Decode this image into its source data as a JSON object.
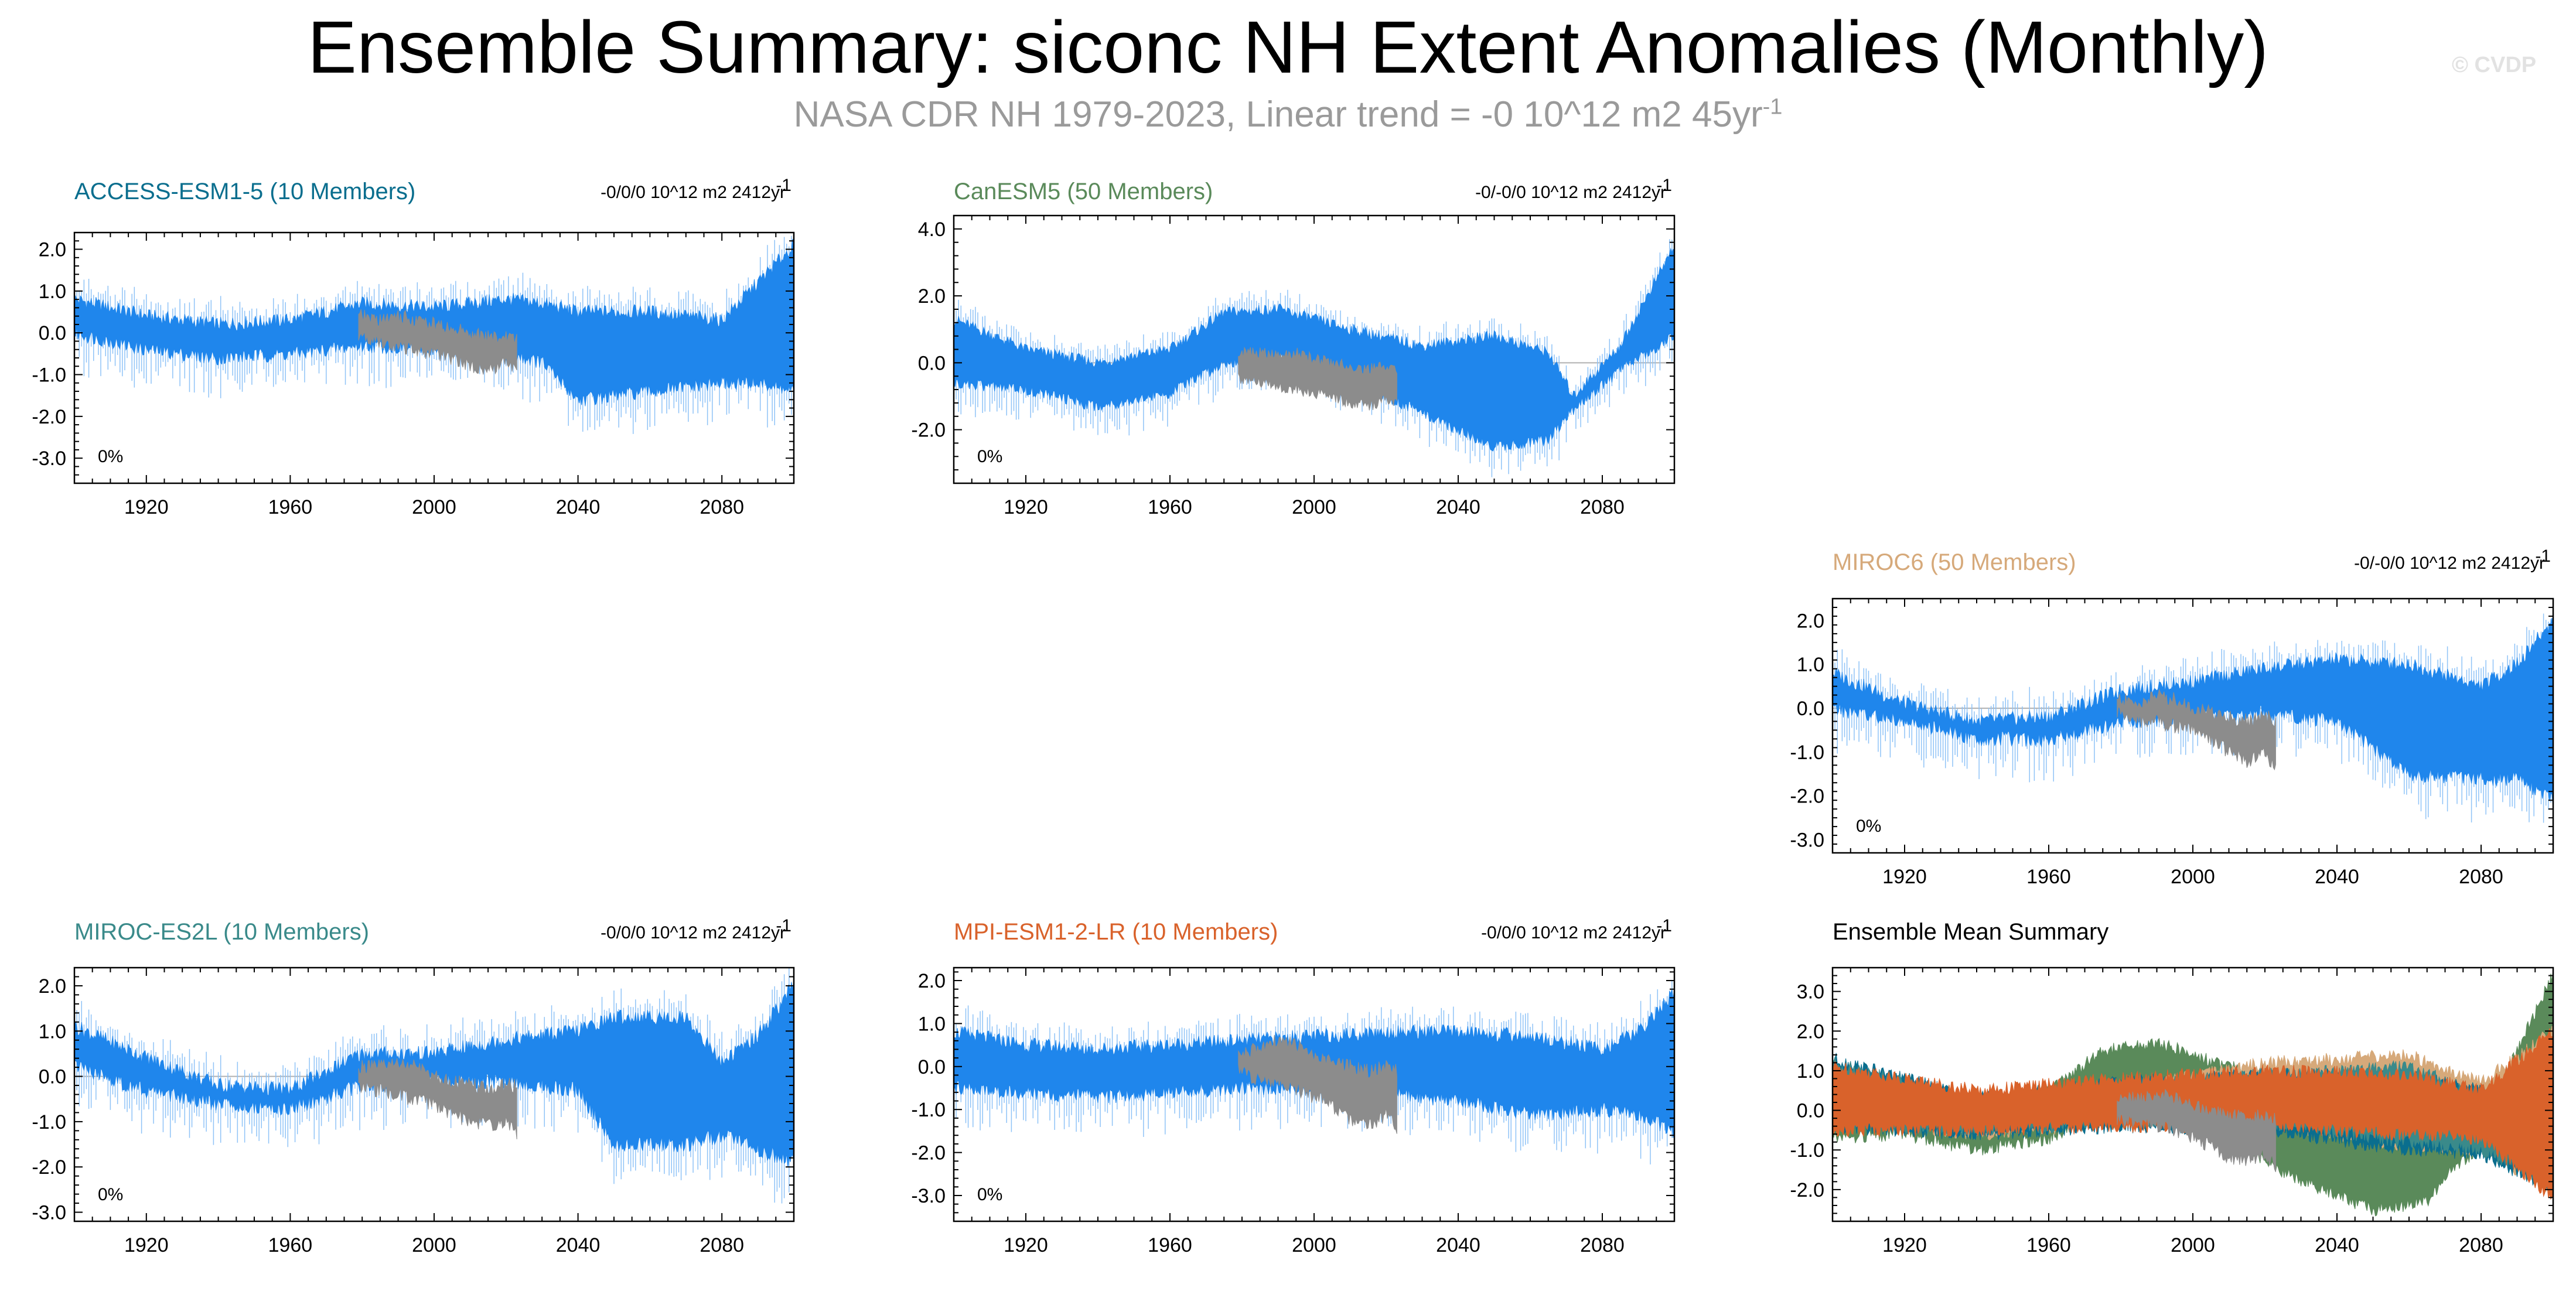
{
  "title": "Ensemble Summary: siconc NH Extent Anomalies (Monthly)",
  "subtitle": "NASA CDR NH 1979-2023, Linear trend = -0 10^12 m2 45yr",
  "subtitle_exp": "-1",
  "credit": "© CVDP",
  "colors": {
    "ensemble": "#1f86ec",
    "ensemble_light": "#8fc3f7",
    "obs": "#8c8c8c"
  },
  "chart_data": [
    {
      "id": "access",
      "type": "area",
      "title": "ACCESS-ESM1-5 (10 Members)",
      "title_color": "#0a6e8e",
      "trend_text": "-0/0/0 10^12 m2 2412yr",
      "trend_exp": "-1",
      "percent_label": "0%",
      "xlim": [
        1900,
        2100
      ],
      "ylim": [
        -3.6,
        2.4
      ],
      "xticks": [
        1920,
        1960,
        2000,
        2040,
        2080
      ],
      "yticks": [
        -3.0,
        -2.0,
        -1.0,
        0.0,
        1.0,
        2.0
      ],
      "ytick_labels": [
        "-3.0",
        "-2.0",
        "-1.0",
        "0.0",
        "1.0",
        "2.0"
      ],
      "ensemble": {
        "x": [
          1900,
          1920,
          1940,
          1960,
          1980,
          2000,
          2020,
          2030,
          2040,
          2060,
          2080,
          2090,
          2100
        ],
        "upper": [
          0.8,
          0.4,
          0.2,
          0.3,
          0.7,
          0.6,
          0.8,
          0.7,
          0.5,
          0.5,
          0.3,
          1.2,
          2.1
        ],
        "lower": [
          0.0,
          -0.4,
          -0.6,
          -0.5,
          -0.3,
          -0.4,
          -0.5,
          -0.7,
          -1.6,
          -1.4,
          -1.2,
          -1.2,
          -1.4
        ]
      },
      "obs": {
        "x": [
          1979,
          1985,
          1990,
          1995,
          2000,
          2005,
          2010,
          2015,
          2020,
          2023
        ],
        "upper": [
          0.4,
          0.3,
          0.4,
          0.3,
          0.2,
          0.1,
          0.0,
          -0.1,
          -0.1,
          -0.2
        ],
        "lower": [
          -0.1,
          -0.2,
          -0.3,
          -0.4,
          -0.5,
          -0.6,
          -0.8,
          -0.9,
          -0.7,
          -0.8
        ]
      }
    },
    {
      "id": "canesm",
      "type": "area",
      "title": "CanESM5 (50 Members)",
      "title_color": "#5a8a5a",
      "trend_text": "-0/-0/0 10^12 m2 2412yr",
      "trend_exp": "-1",
      "percent_label": "0%",
      "xlim": [
        1900,
        2100
      ],
      "ylim": [
        -3.6,
        4.4
      ],
      "xticks": [
        1920,
        1960,
        2000,
        2040,
        2080
      ],
      "yticks": [
        -2.0,
        0.0,
        2.0,
        4.0
      ],
      "ytick_labels": [
        "-2.0",
        "0.0",
        "2.0",
        "4.0"
      ],
      "ensemble": {
        "x": [
          1900,
          1920,
          1940,
          1960,
          1975,
          1990,
          2010,
          2030,
          2050,
          2065,
          2072,
          2085,
          2100
        ],
        "upper": [
          1.3,
          0.4,
          0.0,
          0.4,
          1.5,
          1.6,
          1.0,
          0.5,
          0.8,
          0.3,
          -1.0,
          0.5,
          3.5
        ],
        "lower": [
          -0.6,
          -0.8,
          -1.3,
          -0.9,
          0.0,
          0.2,
          -0.5,
          -1.5,
          -2.5,
          -2.3,
          -1.4,
          -0.2,
          0.8
        ]
      },
      "obs": {
        "x": [
          1979,
          1985,
          1990,
          1995,
          2000,
          2005,
          2010,
          2015,
          2020,
          2023
        ],
        "upper": [
          0.3,
          0.3,
          0.2,
          0.3,
          0.1,
          0.0,
          -0.1,
          -0.2,
          -0.1,
          -0.2
        ],
        "lower": [
          -0.5,
          -0.6,
          -0.7,
          -0.8,
          -0.9,
          -1.0,
          -1.2,
          -1.3,
          -1.1,
          -1.2
        ]
      }
    },
    {
      "id": "miroc6",
      "type": "area",
      "title": "MIROC6 (50 Members)",
      "title_color": "#d6a97a",
      "trend_text": "-0/-0/0 10^12 m2 2412yr",
      "trend_exp": "-1",
      "percent_label": "0%",
      "xlim": [
        1900,
        2100
      ],
      "ylim": [
        -3.3,
        2.5
      ],
      "xticks": [
        1920,
        1960,
        2000,
        2040,
        2080
      ],
      "yticks": [
        -3.0,
        -2.0,
        -1.0,
        0.0,
        1.0,
        2.0
      ],
      "ytick_labels": [
        "-3.0",
        "-2.0",
        "-1.0",
        "0.0",
        "1.0",
        "2.0"
      ],
      "ensemble": {
        "x": [
          1900,
          1920,
          1940,
          1960,
          1980,
          2000,
          2020,
          2040,
          2060,
          2080,
          2090,
          2100
        ],
        "upper": [
          0.8,
          0.1,
          -0.3,
          -0.2,
          0.4,
          0.6,
          0.9,
          1.1,
          1.0,
          0.5,
          1.0,
          2.0
        ],
        "lower": [
          0.0,
          -0.3,
          -0.7,
          -0.7,
          -0.3,
          -0.2,
          -0.1,
          -0.3,
          -1.5,
          -1.6,
          -1.6,
          -2.1
        ]
      },
      "obs": {
        "x": [
          1979,
          1985,
          1990,
          1995,
          2000,
          2005,
          2010,
          2015,
          2020,
          2023
        ],
        "upper": [
          0.2,
          0.1,
          0.3,
          0.2,
          0.0,
          -0.1,
          -0.2,
          -0.3,
          -0.2,
          -0.3
        ],
        "lower": [
          -0.1,
          -0.3,
          -0.3,
          -0.4,
          -0.5,
          -0.7,
          -1.0,
          -1.2,
          -1.0,
          -1.4
        ]
      }
    },
    {
      "id": "miroc-es2l",
      "type": "area",
      "title": "MIROC-ES2L (10 Members)",
      "title_color": "#3a8a8a",
      "trend_text": "-0/0/0 10^12 m2 2412yr",
      "trend_exp": "-1",
      "percent_label": "0%",
      "xlim": [
        1900,
        2100
      ],
      "ylim": [
        -3.2,
        2.4
      ],
      "xticks": [
        1920,
        1960,
        2000,
        2040,
        2080
      ],
      "yticks": [
        -3.0,
        -2.0,
        -1.0,
        0.0,
        1.0,
        2.0
      ],
      "ytick_labels": [
        "-3.0",
        "-2.0",
        "-1.0",
        "0.0",
        "1.0",
        "2.0"
      ],
      "ensemble": {
        "x": [
          1900,
          1920,
          1940,
          1960,
          1980,
          2000,
          2020,
          2040,
          2050,
          2070,
          2080,
          2090,
          2100
        ],
        "upper": [
          1.1,
          0.4,
          -0.2,
          -0.3,
          0.5,
          0.5,
          0.8,
          1.0,
          1.3,
          1.3,
          0.3,
          0.9,
          2.0
        ],
        "lower": [
          0.2,
          -0.3,
          -0.6,
          -0.7,
          -0.2,
          -0.1,
          -0.1,
          -0.3,
          -1.5,
          -1.5,
          -1.3,
          -1.6,
          -1.9
        ]
      },
      "obs": {
        "x": [
          1979,
          1985,
          1990,
          1995,
          2000,
          2005,
          2010,
          2015,
          2020,
          2023
        ],
        "upper": [
          0.2,
          0.2,
          0.3,
          0.2,
          0.0,
          -0.1,
          -0.2,
          -0.3,
          -0.2,
          -0.2
        ],
        "lower": [
          -0.2,
          -0.3,
          -0.4,
          -0.5,
          -0.6,
          -0.8,
          -1.0,
          -1.1,
          -1.0,
          -1.3
        ]
      }
    },
    {
      "id": "mpi",
      "type": "area",
      "title": "MPI-ESM1-2-LR (10 Members)",
      "title_color": "#d9622b",
      "trend_text": "-0/0/0 10^12 m2 2412yr",
      "trend_exp": "-1",
      "percent_label": "0%",
      "xlim": [
        1900,
        2100
      ],
      "ylim": [
        -3.6,
        2.3
      ],
      "xticks": [
        1920,
        1960,
        2000,
        2040,
        2080
      ],
      "yticks": [
        -3.0,
        -2.0,
        -1.0,
        0.0,
        1.0,
        2.0
      ],
      "ytick_labels": [
        "-3.0",
        "-2.0",
        "-1.0",
        "0.0",
        "1.0",
        "2.0"
      ],
      "ensemble": {
        "x": [
          1900,
          1920,
          1940,
          1960,
          1980,
          2000,
          2020,
          2040,
          2060,
          2080,
          2090,
          2100
        ],
        "upper": [
          0.8,
          0.5,
          0.4,
          0.5,
          0.6,
          0.7,
          0.8,
          0.8,
          0.7,
          0.4,
          0.8,
          1.7
        ],
        "lower": [
          -0.5,
          -0.6,
          -0.7,
          -0.6,
          -0.5,
          -0.5,
          -0.6,
          -0.8,
          -1.1,
          -1.0,
          -1.1,
          -1.5
        ]
      },
      "obs": {
        "x": [
          1979,
          1985,
          1990,
          1995,
          2000,
          2005,
          2010,
          2015,
          2020,
          2023
        ],
        "upper": [
          0.3,
          0.4,
          0.6,
          0.5,
          0.2,
          0.1,
          0.0,
          -0.1,
          0.0,
          -0.1
        ],
        "lower": [
          -0.1,
          -0.3,
          -0.4,
          -0.5,
          -0.7,
          -0.9,
          -1.2,
          -1.4,
          -1.1,
          -1.5
        ]
      }
    },
    {
      "id": "ensemble-mean",
      "type": "area",
      "title": "Ensemble Mean Summary",
      "title_color": "#000000",
      "trend_text": "",
      "trend_exp": "",
      "percent_label": "",
      "xlim": [
        1900,
        2100
      ],
      "ylim": [
        -2.8,
        3.6
      ],
      "xticks": [
        1920,
        1960,
        2000,
        2040,
        2080
      ],
      "yticks": [
        -2.0,
        -1.0,
        0.0,
        1.0,
        2.0,
        3.0
      ],
      "ytick_labels": [
        "-2.0",
        "-1.0",
        "0.0",
        "1.0",
        "2.0",
        "3.0"
      ],
      "series": [
        {
          "name": "CanESM5",
          "color": "#5a8a5a",
          "x": [
            1900,
            1920,
            1940,
            1960,
            1975,
            1990,
            2010,
            2030,
            2050,
            2065,
            2072,
            2085,
            2100
          ],
          "upper": [
            1.0,
            0.3,
            0.0,
            0.5,
            1.5,
            1.7,
            1.1,
            0.6,
            0.7,
            0.4,
            -0.6,
            0.6,
            3.4
          ],
          "lower": [
            -0.7,
            -0.6,
            -1.0,
            -0.7,
            -0.1,
            0.1,
            -0.7,
            -1.8,
            -2.5,
            -2.3,
            -1.5,
            -0.5,
            1.5
          ]
        },
        {
          "name": "MIROC6",
          "color": "#d6a97a",
          "x": [
            1900,
            1940,
            1980,
            2020,
            2060,
            2080,
            2100
          ],
          "upper": [
            1.0,
            -0.1,
            0.5,
            1.2,
            1.4,
            0.7,
            2.0
          ],
          "lower": [
            -0.2,
            -0.6,
            -0.3,
            -0.3,
            -0.9,
            -1.0,
            -2.0
          ]
        },
        {
          "name": "ACCESS-ESM1-5",
          "color": "#0a6e8e",
          "x": [
            1900,
            1940,
            1980,
            2020,
            2060,
            2080,
            2100
          ],
          "upper": [
            1.3,
            0.3,
            0.7,
            0.9,
            0.9,
            0.5,
            0.3
          ],
          "lower": [
            -0.4,
            -0.6,
            -0.4,
            -0.5,
            -1.0,
            -1.1,
            -2.0
          ]
        },
        {
          "name": "MIROC-ES2L",
          "color": "#3a8a8a",
          "x": [
            1900,
            1940,
            1980,
            2020,
            2060,
            2080,
            2100
          ],
          "upper": [
            1.2,
            0.2,
            0.6,
            0.9,
            1.1,
            0.4,
            0.5
          ],
          "lower": [
            -0.3,
            -0.5,
            -0.3,
            -0.3,
            -0.8,
            -1.0,
            -1.8
          ]
        },
        {
          "name": "MPI-ESM1-2-LR",
          "color": "#d9622b",
          "x": [
            1900,
            1940,
            1980,
            2020,
            2060,
            2080,
            2100
          ],
          "upper": [
            1.1,
            0.5,
            0.8,
            1.0,
            0.9,
            0.5,
            2.0
          ],
          "lower": [
            -0.5,
            -0.5,
            -0.4,
            -0.4,
            -0.6,
            -0.7,
            -2.2
          ]
        }
      ],
      "obs": {
        "x": [
          1979,
          1985,
          1990,
          1995,
          2000,
          2005,
          2010,
          2015,
          2020,
          2023
        ],
        "upper": [
          0.3,
          0.3,
          0.4,
          0.3,
          0.1,
          0.0,
          -0.1,
          -0.2,
          -0.1,
          -0.2
        ],
        "lower": [
          -0.2,
          -0.3,
          -0.4,
          -0.5,
          -0.7,
          -0.9,
          -1.2,
          -1.3,
          -1.1,
          -1.4
        ]
      }
    }
  ]
}
